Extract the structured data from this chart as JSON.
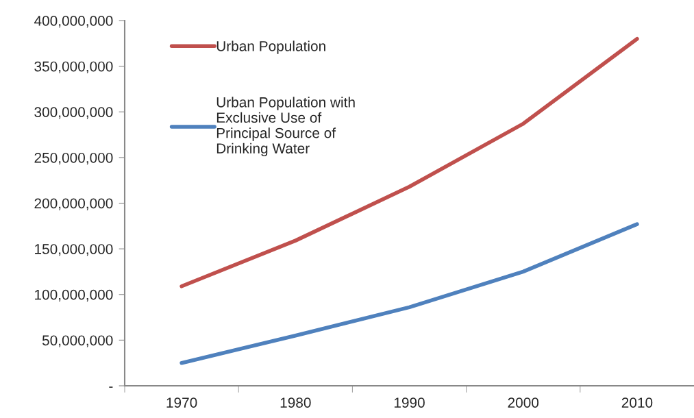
{
  "chart_data": {
    "type": "line",
    "categories": [
      "1970",
      "1980",
      "1990",
      "2000",
      "2010"
    ],
    "series": [
      {
        "name": "Urban Population",
        "color": "#c0504d",
        "values": [
          109000000,
          159000000,
          218000000,
          287000000,
          380000000
        ]
      },
      {
        "name": "Urban Population with\nExclusive Use of\nPrincipal Source of\nDrinking Water",
        "color": "#4f81bd",
        "values": [
          25000000,
          55000000,
          86000000,
          125000000,
          177000000
        ]
      }
    ],
    "ylim": [
      0,
      400000000
    ],
    "yticks": [
      {
        "value": 0,
        "label": "-"
      },
      {
        "value": 50000000,
        "label": "50,000,000"
      },
      {
        "value": 100000000,
        "label": "100,000,000"
      },
      {
        "value": 150000000,
        "label": "150,000,000"
      },
      {
        "value": 200000000,
        "label": "200,000,000"
      },
      {
        "value": 250000000,
        "label": "250,000,000"
      },
      {
        "value": 300000000,
        "label": "300,000,000"
      },
      {
        "value": 350000000,
        "label": "350,000,000"
      },
      {
        "value": 400000000,
        "label": "400,000,000"
      }
    ],
    "grid": false,
    "legend": "top left",
    "marker": "none",
    "line_style": "solid"
  }
}
